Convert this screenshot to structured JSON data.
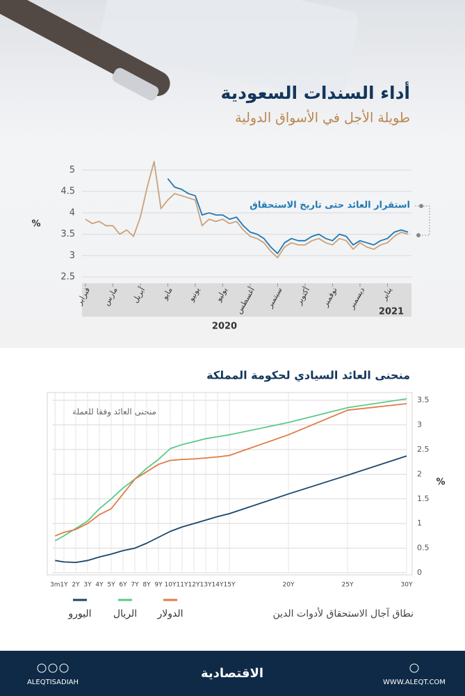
{
  "header": {
    "title": "أداء السندات السعودية",
    "subtitle": "طويلة الأجل في الأسواق الدولية"
  },
  "chart_data": [
    {
      "type": "line",
      "ylabel": "%",
      "annotation": "استقرار العائد حتى تاريخ الاستحقاق",
      "year_labels": [
        "2020",
        "2021"
      ],
      "categories": [
        "فبراير",
        null,
        null,
        null,
        "مارس",
        null,
        null,
        null,
        "أبريل",
        null,
        null,
        null,
        "مايو",
        null,
        null,
        null,
        "يونيو",
        null,
        null,
        null,
        "يوليو",
        null,
        null,
        null,
        "أغسطس",
        null,
        null,
        null,
        "سبتمبر",
        null,
        null,
        null,
        "أكتوبر",
        null,
        null,
        null,
        "نوفمبر",
        null,
        null,
        null,
        "ديسمبر",
        null,
        null,
        null,
        "يناير",
        null,
        null,
        null
      ],
      "series": [
        {
          "color": "#c9a27a",
          "values": [
            3.85,
            3.75,
            3.8,
            3.7,
            3.7,
            3.5,
            3.6,
            3.45,
            3.9,
            4.6,
            5.2,
            4.1,
            4.3,
            4.45,
            4.4,
            4.35,
            4.3,
            3.7,
            3.85,
            3.8,
            3.85,
            3.75,
            3.8,
            3.6,
            3.45,
            3.4,
            3.3,
            3.1,
            2.95,
            3.2,
            3.3,
            3.25,
            3.25,
            3.35,
            3.4,
            3.3,
            3.25,
            3.4,
            3.35,
            3.15,
            3.3,
            3.2,
            3.15,
            3.25,
            3.3,
            3.45,
            3.55,
            3.5
          ]
        },
        {
          "color": "#1f78b4",
          "values": [
            null,
            null,
            null,
            null,
            null,
            null,
            null,
            null,
            null,
            null,
            null,
            null,
            4.8,
            4.6,
            4.55,
            4.45,
            4.4,
            3.95,
            4.0,
            3.95,
            3.95,
            3.85,
            3.9,
            3.7,
            3.55,
            3.5,
            3.4,
            3.2,
            3.05,
            3.3,
            3.4,
            3.35,
            3.35,
            3.45,
            3.5,
            3.4,
            3.35,
            3.5,
            3.45,
            3.25,
            3.35,
            3.3,
            3.25,
            3.35,
            3.4,
            3.55,
            3.6,
            3.55
          ]
        }
      ],
      "ylim": [
        2.5,
        5.25
      ],
      "yticks": [
        2.5,
        3,
        3.5,
        4,
        4.5,
        5
      ],
      "grid": true
    },
    {
      "type": "line",
      "title": "منحنى العائد السيادي لحكومة المملكة",
      "subtitle": "منحنى العائد وفقا للعملة",
      "xlabel": "نطاق آجال الاستحقاق لأدوات الدين",
      "ylabel": "%",
      "x": [
        0.25,
        1,
        2,
        3,
        4,
        5,
        6,
        7,
        8,
        9,
        10,
        11,
        12,
        13,
        14,
        15,
        20,
        25,
        30
      ],
      "series": [
        {
          "name": "اليورو",
          "color": "#17456b",
          "values": [
            0.25,
            0.22,
            0.21,
            0.25,
            0.32,
            0.38,
            0.45,
            0.5,
            0.6,
            0.72,
            0.84,
            0.93,
            1.0,
            1.07,
            1.14,
            1.2,
            1.6,
            1.98,
            2.37
          ]
        },
        {
          "name": "الريال",
          "color": "#5cc98a",
          "values": [
            0.65,
            0.75,
            0.9,
            1.05,
            1.3,
            1.5,
            1.72,
            1.9,
            2.12,
            2.3,
            2.52,
            2.6,
            2.66,
            2.72,
            2.76,
            2.8,
            3.05,
            3.35,
            3.53
          ]
        },
        {
          "name": "الدولار",
          "color": "#e07b45",
          "values": [
            0.75,
            0.82,
            0.88,
            1.0,
            1.18,
            1.3,
            1.6,
            1.9,
            2.05,
            2.2,
            2.28,
            2.3,
            2.31,
            2.33,
            2.35,
            2.38,
            2.8,
            3.3,
            3.43
          ]
        }
      ],
      "xlim": [
        0,
        30
      ],
      "xticks": [
        {
          "value": 0.25,
          "label": "3m"
        },
        {
          "value": 1,
          "label": "1Y"
        },
        {
          "value": 2,
          "label": "2Y"
        },
        {
          "value": 3,
          "label": "3Y"
        },
        {
          "value": 4,
          "label": "4Y"
        },
        {
          "value": 5,
          "label": "5Y"
        },
        {
          "value": 6,
          "label": "6Y"
        },
        {
          "value": 7,
          "label": "7Y"
        },
        {
          "value": 8,
          "label": "8Y"
        },
        {
          "value": 9,
          "label": "9Y"
        },
        {
          "value": 10,
          "label": "10Y"
        },
        {
          "value": 11,
          "label": "11Y"
        },
        {
          "value": 12,
          "label": "12Y"
        },
        {
          "value": 13,
          "label": "13Y"
        },
        {
          "value": 14,
          "label": "14Y"
        },
        {
          "value": 15,
          "label": "15Y"
        },
        {
          "value": 20,
          "label": "20Y"
        },
        {
          "value": 25,
          "label": "25Y"
        },
        {
          "value": 30,
          "label": "30Y"
        }
      ],
      "ylim": [
        0,
        3.6
      ],
      "yticks": [
        0,
        0.5,
        1,
        1.5,
        2,
        2.5,
        3,
        3.5
      ],
      "grid": true
    }
  ],
  "footer": {
    "handle": "ALEQTISADIAH",
    "logo": "الاقتصادية",
    "site": "WWW.ALEQT.COM"
  }
}
